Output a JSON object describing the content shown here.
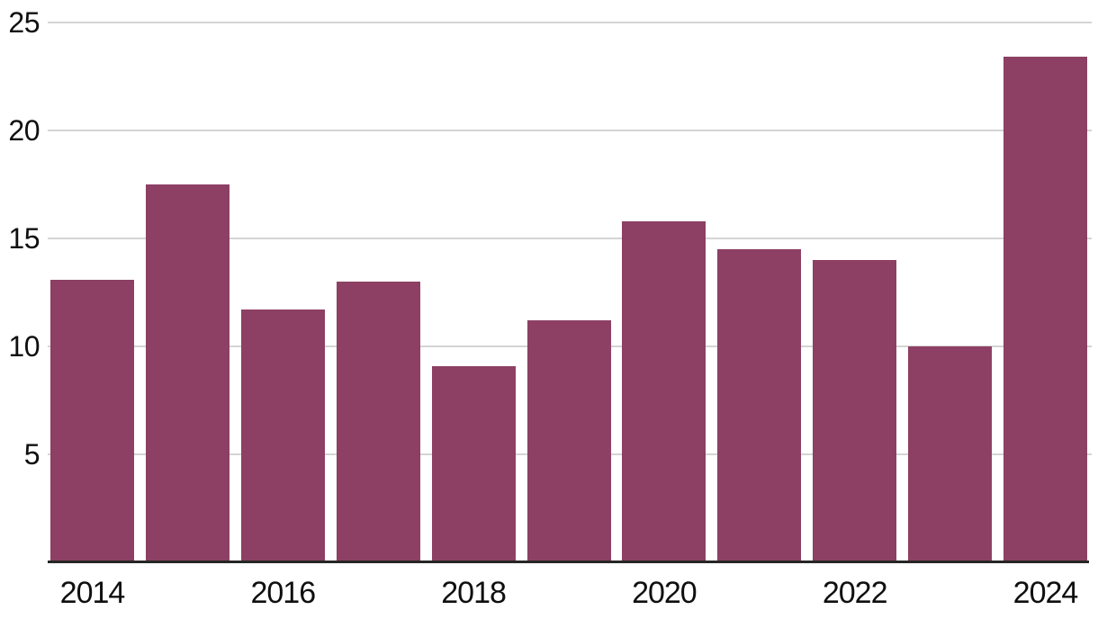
{
  "chart_data": {
    "type": "bar",
    "title": "",
    "xlabel": "",
    "ylabel": "",
    "categories": [
      2014,
      2015,
      2016,
      2017,
      2018,
      2019,
      2020,
      2021,
      2022,
      2023,
      2024
    ],
    "values": [
      13.1,
      17.5,
      11.7,
      13.0,
      9.1,
      11.2,
      15.8,
      14.5,
      14.0,
      10.0,
      23.4
    ],
    "ylim": [
      0,
      25
    ],
    "yticks": [
      5,
      10,
      15,
      20,
      25
    ],
    "ytick_labels": [
      "5",
      "10",
      "15",
      "20",
      "25"
    ],
    "xtick_labels": [
      "2014",
      "2016",
      "2018",
      "2020",
      "2022",
      "2024"
    ],
    "xtick_years": [
      2014,
      2016,
      2018,
      2020,
      2022,
      2024
    ],
    "grid": "horizontal-behind-bars",
    "legend": "none",
    "colors": {
      "bar_fill": "#8d4063",
      "axis_line": "#262626",
      "gridline": "#d4d4d4",
      "tick_text": "#0f0f0f",
      "background": "#ffffff"
    }
  }
}
